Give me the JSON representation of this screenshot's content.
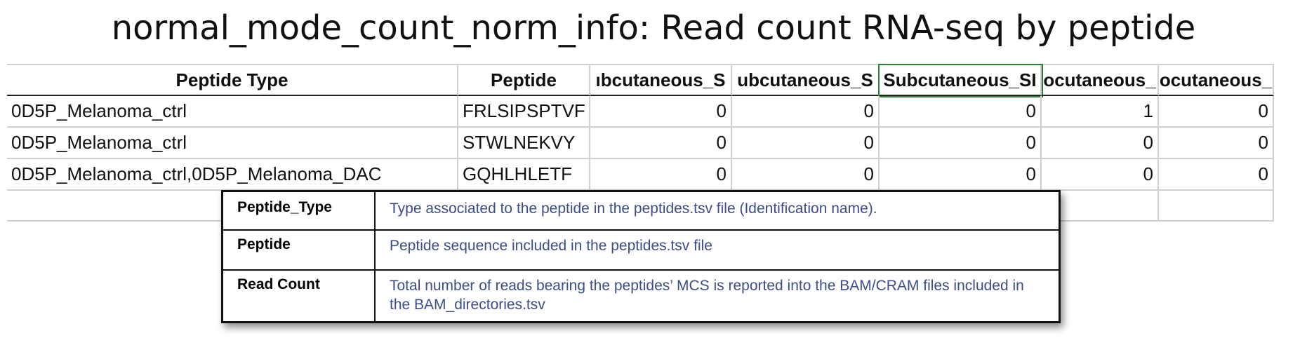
{
  "title": "normal_mode_count_norm_info: Read count RNA-seq by peptide",
  "sheet": {
    "header": [
      "Peptide Type",
      "Peptide",
      "ıbcutaneous_S",
      "ubcutaneous_S",
      "Subcutaneous_SI",
      "ocutaneous_",
      "ocutaneous_"
    ],
    "rows": [
      [
        "0D5P_Melanoma_ctrl",
        "FRLSIPSPTVF",
        0,
        0,
        0,
        1,
        0
      ],
      [
        "0D5P_Melanoma_ctrl",
        "STWLNEKVY",
        0,
        0,
        0,
        0,
        0
      ],
      [
        "0D5P_Melanoma_ctrl,0D5P_Melanoma_DAC",
        "GQHLHLETF",
        0,
        0,
        0,
        0,
        0
      ]
    ]
  },
  "legend": {
    "rows": [
      {
        "term": "Peptide_Type",
        "description": "Type associated to the peptide in the peptides.tsv file (Identification name)."
      },
      {
        "term": "Peptide",
        "description": "Peptide sequence included in the peptides.tsv file"
      },
      {
        "term": "Read Count",
        "description": "Total number of reads bearing the peptides’ MCS is reported into the BAM/CRAM files included in the BAM_directories.tsv"
      }
    ]
  }
}
